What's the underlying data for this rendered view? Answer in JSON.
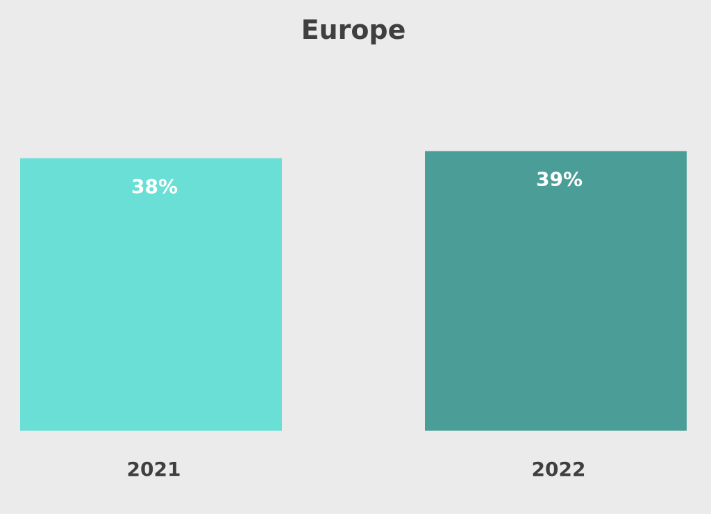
{
  "chart_data": {
    "type": "bar",
    "title": "Europe",
    "categories": [
      "2021",
      "2022"
    ],
    "values": [
      38,
      39
    ],
    "value_labels": [
      "38%",
      "39%"
    ],
    "unit": "%",
    "colors": [
      "#6adfd6",
      "#4b9e97"
    ],
    "ylim": [
      0,
      45
    ],
    "grid": false,
    "legend": "none",
    "xlabel": "",
    "ylabel": ""
  },
  "colors": {
    "background": "#ebebeb",
    "text": "#3f3f3f",
    "data_label": "#ffffff"
  }
}
